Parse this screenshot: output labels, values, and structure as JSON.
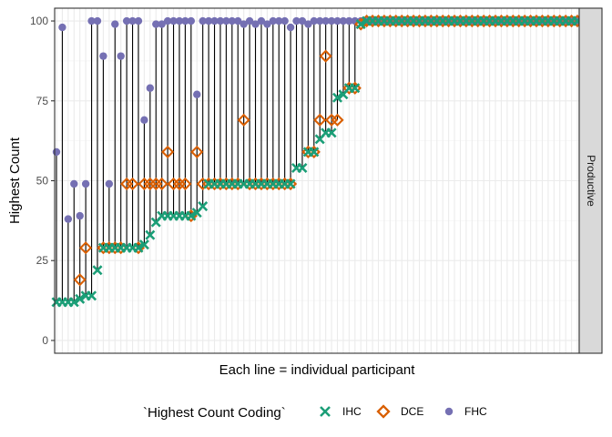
{
  "chart_data": {
    "type": "scatter",
    "subtype": "dumbbell-lollipop",
    "title": "",
    "xlabel": "Each line = individual participant",
    "ylabel": "Highest Count",
    "ylim": [
      -4,
      104
    ],
    "y_ticks": [
      0,
      25,
      50,
      75,
      100
    ],
    "x_ticks": "none",
    "grid": true,
    "facet_label": "Productive",
    "legend": {
      "title": "`Highest Count Coding`",
      "position": "bottom",
      "entries": [
        {
          "name": "IHC",
          "shape": "cross",
          "color": "#1B9E77"
        },
        {
          "name": "DCE",
          "shape": "diamond-open",
          "color": "#D95F02"
        },
        {
          "name": "FHC",
          "shape": "circle",
          "color": "#7570B3"
        }
      ]
    },
    "series": [
      {
        "name": "IHC",
        "values": [
          12,
          12,
          12,
          12,
          13,
          14,
          14,
          22,
          29,
          29,
          29,
          29,
          29,
          29,
          29,
          30,
          33,
          37,
          39,
          39,
          39,
          39,
          39,
          39,
          40,
          42,
          49,
          49,
          49,
          49,
          49,
          49,
          49,
          49,
          49,
          49,
          49,
          49,
          49,
          49,
          49,
          54,
          54,
          59,
          59,
          63,
          65,
          65,
          76,
          77,
          79,
          79,
          99,
          100,
          100,
          100,
          100,
          100,
          100,
          100,
          100,
          100,
          100,
          100,
          100,
          100,
          100,
          100,
          100,
          100,
          100,
          100,
          100,
          100,
          100,
          100,
          100,
          100,
          100,
          100,
          100,
          100,
          100,
          100,
          100,
          100,
          100,
          100,
          100,
          100
        ]
      },
      {
        "name": "DCE",
        "values": [
          null,
          null,
          null,
          null,
          19,
          29,
          null,
          null,
          29,
          29,
          29,
          29,
          49,
          49,
          29,
          49,
          49,
          49,
          49,
          59,
          49,
          49,
          49,
          39,
          59,
          49,
          49,
          49,
          49,
          49,
          49,
          49,
          69,
          49,
          49,
          49,
          49,
          49,
          49,
          49,
          49,
          null,
          null,
          59,
          59,
          69,
          89,
          69,
          69,
          null,
          79,
          79,
          99,
          100,
          100,
          100,
          100,
          100,
          100,
          100,
          100,
          100,
          100,
          100,
          100,
          100,
          100,
          100,
          100,
          100,
          100,
          100,
          100,
          100,
          100,
          100,
          100,
          100,
          100,
          100,
          100,
          100,
          100,
          100,
          100,
          100,
          100,
          100,
          100,
          100
        ]
      },
      {
        "name": "FHC",
        "values": [
          59,
          98,
          38,
          49,
          39,
          49,
          100,
          100,
          89,
          49,
          99,
          89,
          100,
          100,
          100,
          69,
          79,
          99,
          99,
          100,
          100,
          100,
          100,
          100,
          77,
          100,
          100,
          100,
          100,
          100,
          100,
          100,
          99,
          100,
          99,
          100,
          99,
          100,
          100,
          100,
          98,
          100,
          100,
          99,
          100,
          100,
          100,
          100,
          100,
          100,
          100,
          100,
          100,
          100,
          100,
          100,
          100,
          100,
          100,
          100,
          100,
          100,
          100,
          100,
          100,
          100,
          100,
          100,
          100,
          100,
          100,
          100,
          100,
          100,
          100,
          100,
          100,
          100,
          100,
          100,
          100,
          100,
          100,
          100,
          100,
          100,
          100,
          100,
          100,
          100
        ]
      }
    ]
  }
}
